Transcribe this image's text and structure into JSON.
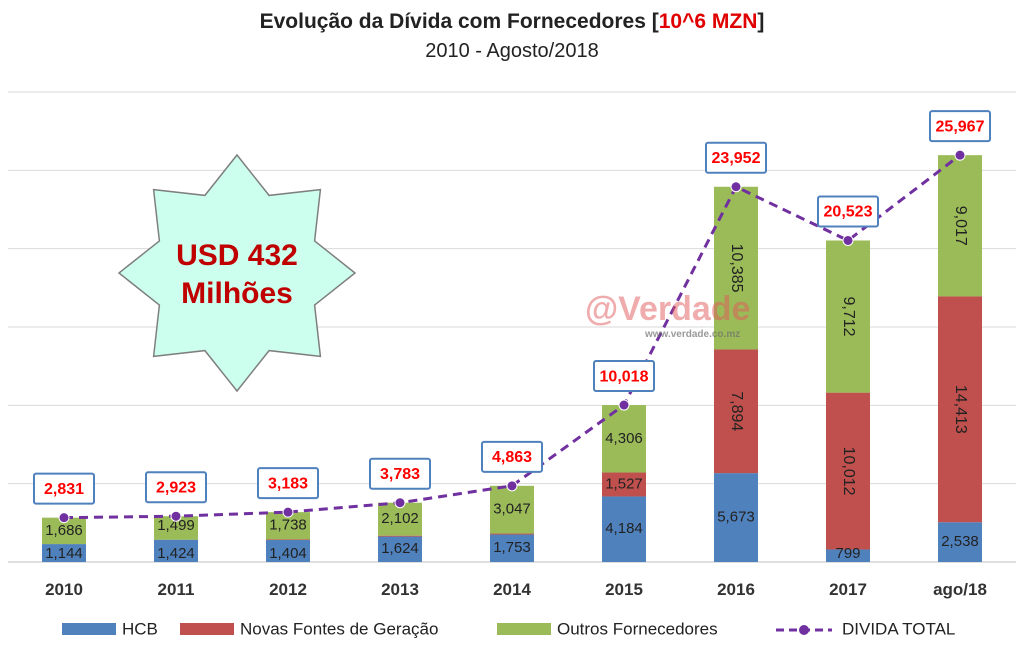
{
  "title_main": "Evolução da Dívida com Fornecedores",
  "title_unit_open": "[",
  "title_unit": "10^6 MZN",
  "title_unit_close": "]",
  "subtitle": "2010 - Agosto/2018",
  "badge": {
    "line1": "USD 432",
    "line2": "Milhões"
  },
  "watermark": {
    "main": "@Verdade",
    "sub": "www.verdade.co.mz"
  },
  "colors": {
    "hcb": "#4f81bd",
    "novas": "#c0504d",
    "outros": "#9bbb59",
    "total": "#7030a0",
    "total_label": "#ff0000",
    "badge_fill": "#ccffee",
    "badge_text": "#c00000"
  },
  "chart_data": {
    "type": "bar",
    "stacked": true,
    "categories": [
      "2010",
      "2011",
      "2012",
      "2013",
      "2014",
      "2015",
      "2016",
      "2017",
      "ago/18"
    ],
    "series": [
      {
        "name": "HCB",
        "values": [
          1144,
          1424,
          1404,
          1624,
          1753,
          4184,
          5673,
          799,
          2538
        ],
        "labels": [
          "1,144",
          "1,424",
          "1,404",
          "1,624",
          "1,753",
          "4,184",
          "5,673",
          "799",
          "2,538"
        ]
      },
      {
        "name": "Novas Fontes de Geração",
        "values": [
          1,
          0,
          41,
          57,
          63,
          1527,
          7894,
          10012,
          14413
        ],
        "labels": [
          "",
          "",
          "",
          "",
          "",
          "1,527",
          "7,894",
          "10,012",
          "14,413"
        ]
      },
      {
        "name": "Outros Fornecedores",
        "values": [
          1686,
          1499,
          1738,
          2102,
          3047,
          4306,
          10385,
          9712,
          9017
        ],
        "labels": [
          "1,686",
          "1,499",
          "1,738",
          "2,102",
          "3,047",
          "4,306",
          "10,385",
          "9,712",
          "9,017"
        ]
      }
    ],
    "line": {
      "name": "DIVIDA TOTAL",
      "values": [
        2831,
        2923,
        3183,
        3783,
        4863,
        10018,
        23952,
        20523,
        25967
      ],
      "labels": [
        "2,831",
        "2,923",
        "3,183",
        "3,783",
        "4,863",
        "10,018",
        "23,952",
        "20,523",
        "25,967"
      ]
    },
    "ylim": [
      0,
      30000
    ],
    "ystep": 5000,
    "grid": true,
    "legend_position": "bottom"
  }
}
